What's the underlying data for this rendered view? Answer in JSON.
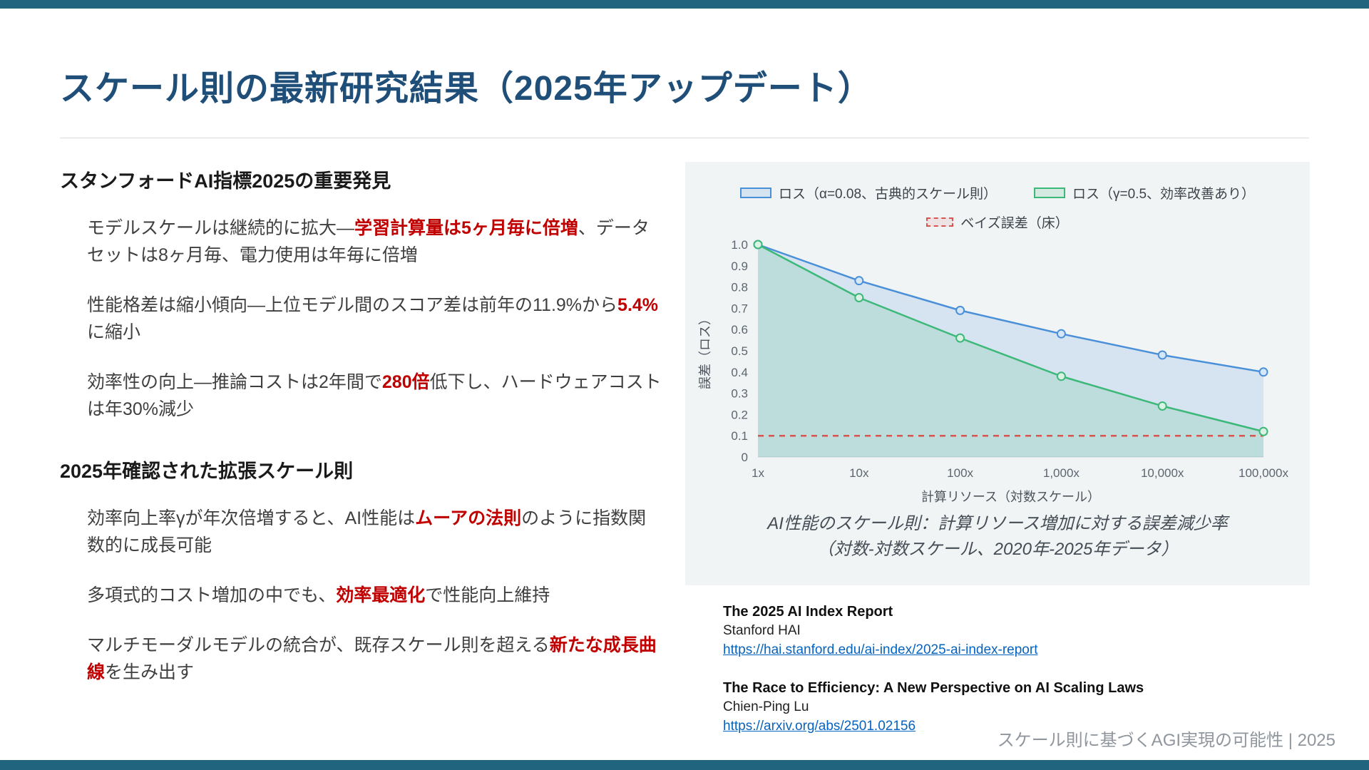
{
  "colors": {
    "accent_bar": "#20647e",
    "title": "#1f4e79",
    "heading_text": "#1a1a1a",
    "body_text": "#3f3f3f",
    "emphasis": "#c00000",
    "link": "#0563c1",
    "panel_bg": "#f1f4f5",
    "footer_text": "#8f969e"
  },
  "slide": {
    "title": "スケール則の最新研究結果（2025年アップデート）",
    "footer": "スケール則に基づくAGI実現の可能性 | 2025"
  },
  "left": {
    "sections": [
      {
        "heading": "スタンフォードAI指標2025の重要発見",
        "items": [
          [
            {
              "t": "モデルスケールは継続的に拡大—"
            },
            {
              "t": "学習計算量は5ヶ月毎に倍増",
              "em": true
            },
            {
              "t": "、データセットは8ヶ月毎、電力使用は年毎に倍増"
            }
          ],
          [
            {
              "t": "性能格差は縮小傾向—上位モデル間のスコア差は前年の11.9%から"
            },
            {
              "t": "5.4%",
              "em": true
            },
            {
              "t": "に縮小"
            }
          ],
          [
            {
              "t": "効率性の向上—推論コストは2年間で"
            },
            {
              "t": "280倍",
              "em": true
            },
            {
              "t": "低下し、ハードウェアコストは年30%減少"
            }
          ]
        ]
      },
      {
        "heading": "2025年確認された拡張スケール則",
        "items": [
          [
            {
              "t": "効率向上率γが年次倍増すると、AI性能は"
            },
            {
              "t": "ムーアの法則",
              "em": true
            },
            {
              "t": "のように指数関数的に成長可能"
            }
          ],
          [
            {
              "t": "多項式的コスト増加の中でも、"
            },
            {
              "t": "効率最適化",
              "em": true
            },
            {
              "t": "で性能向上維持"
            }
          ],
          [
            {
              "t": "マルチモーダルモデルの統合が、既存スケール則を超える"
            },
            {
              "t": "新たな成長曲線",
              "em": true
            },
            {
              "t": "を生み出す"
            }
          ]
        ]
      }
    ]
  },
  "chart_data": {
    "type": "line",
    "categories": [
      "1x",
      "10x",
      "100x",
      "1,000x",
      "10,000x",
      "100,000x"
    ],
    "series": [
      {
        "name": "ロス（α=0.08、古典的スケール則）",
        "color": "#4a90d9",
        "fill": "rgba(74,144,217,0.16)",
        "marker_fill": "#d6e8f8",
        "values": [
          1.0,
          0.83,
          0.69,
          0.58,
          0.48,
          0.4
        ]
      },
      {
        "name": "ロス（γ=0.5、効率改善あり）",
        "color": "#3cb878",
        "fill": "rgba(60,184,120,0.16)",
        "marker_fill": "#d9f2e4",
        "values": [
          1.0,
          0.75,
          0.56,
          0.38,
          0.24,
          0.12
        ]
      }
    ],
    "floor": {
      "name": "ベイズ誤差（床）",
      "value": 0.1,
      "color": "#d9534f",
      "swatch_fill": "rgba(217,83,79,0.10)"
    },
    "xlabel": "計算リソース（対数スケール）",
    "ylabel": "誤差（ロス）",
    "ylim": [
      0,
      1.0
    ],
    "yticks": [
      0,
      0.1,
      0.2,
      0.3,
      0.4,
      0.5,
      0.6,
      0.7,
      0.8,
      0.9,
      1.0
    ],
    "grid": false,
    "legend_position": "top",
    "caption_line1": "AI性能のスケール則：計算リソース増加に対する誤差減少率",
    "caption_line2": "（対数-対数スケール、2020年-2025年データ）"
  },
  "references": [
    {
      "title": "The 2025 AI Index Report",
      "author": "Stanford HAI",
      "url": "https://hai.stanford.edu/ai-index/2025-ai-index-report"
    },
    {
      "title": "The Race to Efficiency: A New Perspective on AI Scaling Laws",
      "author": "Chien-Ping Lu",
      "url": "https://arxiv.org/abs/2501.02156"
    }
  ]
}
